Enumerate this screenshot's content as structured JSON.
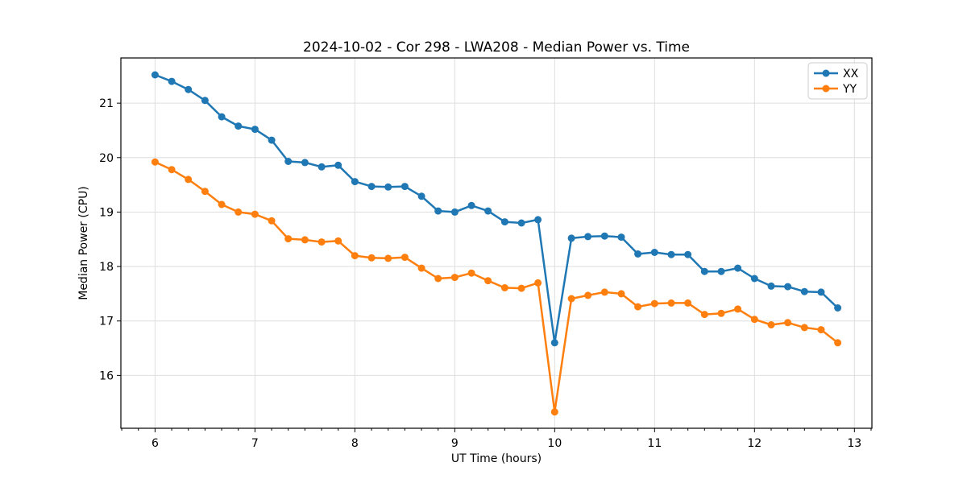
{
  "chart_data": {
    "type": "line",
    "title": "2024-10-02 - Cor 298 - LWA208 - Median Power vs. Time",
    "xlabel": "UT Time (hours)",
    "ylabel": "Median Power (CPU)",
    "xlim": [
      5.658,
      13.175
    ],
    "ylim": [
      15.03,
      21.83
    ],
    "xticks": [
      6,
      7,
      8,
      9,
      10,
      11,
      12,
      13
    ],
    "yticks": [
      16,
      17,
      18,
      19,
      20,
      21
    ],
    "minor_xticks_every_hours": 0.1667,
    "grid": true,
    "legend_position": "upper right",
    "x": [
      6.0,
      6.167,
      6.333,
      6.5,
      6.667,
      6.833,
      7.0,
      7.167,
      7.333,
      7.5,
      7.667,
      7.833,
      8.0,
      8.167,
      8.333,
      8.5,
      8.667,
      8.833,
      9.0,
      9.167,
      9.333,
      9.5,
      9.667,
      9.833,
      10.0,
      10.167,
      10.333,
      10.5,
      10.667,
      10.833,
      11.0,
      11.167,
      11.333,
      11.5,
      11.667,
      11.833,
      12.0,
      12.167,
      12.333,
      12.5,
      12.667,
      12.833
    ],
    "series": [
      {
        "name": "XX",
        "color": "#1f77b4",
        "values": [
          21.52,
          21.4,
          21.25,
          21.05,
          20.75,
          20.58,
          20.52,
          20.32,
          19.93,
          19.91,
          19.83,
          19.86,
          19.56,
          19.47,
          19.46,
          19.47,
          19.29,
          19.02,
          19.0,
          19.12,
          19.02,
          18.82,
          18.8,
          18.86,
          16.6,
          18.52,
          18.55,
          18.56,
          18.54,
          18.23,
          18.26,
          18.22,
          18.22,
          17.91,
          17.91,
          17.97,
          17.78,
          17.64,
          17.63,
          17.54,
          17.53,
          17.24
        ]
      },
      {
        "name": "YY",
        "color": "#ff7f0e",
        "values": [
          19.92,
          19.78,
          19.6,
          19.38,
          19.14,
          19.0,
          18.96,
          18.84,
          18.51,
          18.49,
          18.45,
          18.47,
          18.2,
          18.16,
          18.15,
          18.17,
          17.97,
          17.78,
          17.8,
          17.88,
          17.74,
          17.61,
          17.6,
          17.7,
          15.33,
          17.41,
          17.47,
          17.53,
          17.5,
          17.26,
          17.32,
          17.33,
          17.33,
          17.12,
          17.14,
          17.22,
          17.03,
          16.93,
          16.97,
          16.88,
          16.84,
          16.6
        ]
      }
    ]
  }
}
